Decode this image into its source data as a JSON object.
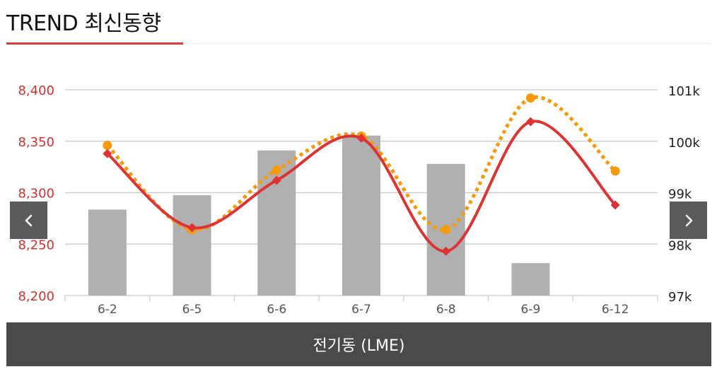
{
  "page_title": "TREND 최신동향",
  "nav": {
    "prev_icon": "chevron-left-icon",
    "next_icon": "chevron-right-icon"
  },
  "footer": {
    "label": "전기동 (LME)"
  },
  "colors": {
    "title_accent": "#e13c3c",
    "line_main": "#dd3333",
    "line_dotted": "#f59a0b",
    "bars": "#b0b0b0",
    "left_axis_text": "#cc3333"
  },
  "chart_data": {
    "type": "bar+line",
    "categories": [
      "6-2",
      "6-5",
      "6-6",
      "6-7",
      "6-8",
      "6-9",
      "6-12"
    ],
    "y_left": {
      "ticks": [
        "8,200",
        "8,250",
        "8,300",
        "8,350",
        "8,400"
      ],
      "range": [
        8200,
        8400
      ]
    },
    "y_right": {
      "ticks": [
        "97k",
        "98k",
        "99k",
        "100k",
        "101k"
      ],
      "range": [
        97000,
        101000
      ]
    },
    "bars": {
      "axis": "right",
      "values": [
        98670,
        98950,
        99820,
        100110,
        99560,
        97630,
        null
      ]
    },
    "lines": [
      {
        "style": "solid",
        "axis": "left",
        "values": [
          8338,
          8266,
          8312,
          8353,
          8243,
          8369,
          8288
        ]
      },
      {
        "style": "dotted",
        "axis": "left",
        "values": [
          8346,
          8264,
          8322,
          8355,
          8264,
          8392,
          8321
        ]
      }
    ],
    "grid": true
  }
}
